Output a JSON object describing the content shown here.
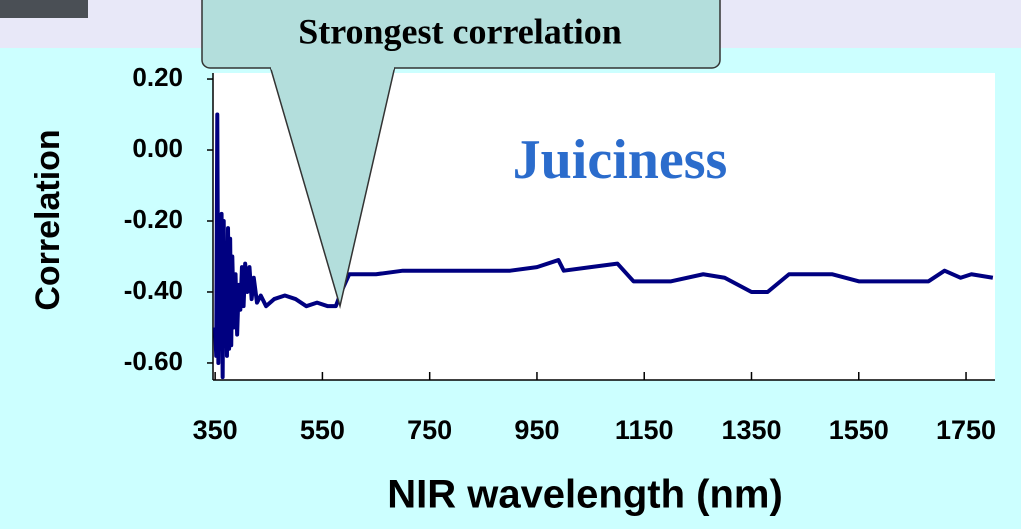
{
  "chart_data": {
    "type": "line",
    "title": "Juiciness",
    "annotation": "Strongest correlation",
    "xlabel": "NIR wavelength (nm)",
    "ylabel": "Correlation",
    "color": "#000080",
    "x": [
      350,
      352,
      354,
      356,
      358,
      360,
      362,
      364,
      366,
      368,
      370,
      372,
      374,
      376,
      378,
      380,
      382,
      385,
      388,
      391,
      394,
      397,
      400,
      403,
      406,
      410,
      414,
      418,
      422,
      428,
      435,
      445,
      460,
      480,
      500,
      520,
      540,
      560,
      575,
      585,
      600,
      650,
      700,
      800,
      900,
      950,
      990,
      1000,
      1050,
      1100,
      1130,
      1200,
      1260,
      1300,
      1350,
      1380,
      1420,
      1500,
      1550,
      1680,
      1710,
      1740,
      1760,
      1800
    ],
    "values": [
      -0.5,
      -0.58,
      0.1,
      -0.6,
      -0.22,
      -0.56,
      -0.18,
      -0.64,
      -0.2,
      -0.55,
      -0.3,
      -0.58,
      -0.22,
      -0.56,
      -0.25,
      -0.55,
      -0.3,
      -0.5,
      -0.35,
      -0.52,
      -0.38,
      -0.45,
      -0.33,
      -0.44,
      -0.32,
      -0.4,
      -0.33,
      -0.42,
      -0.36,
      -0.43,
      -0.41,
      -0.44,
      -0.42,
      -0.41,
      -0.42,
      -0.44,
      -0.43,
      -0.44,
      -0.44,
      -0.4,
      -0.35,
      -0.35,
      -0.34,
      -0.34,
      -0.34,
      -0.33,
      -0.31,
      -0.34,
      -0.33,
      -0.32,
      -0.37,
      -0.37,
      -0.35,
      -0.36,
      -0.4,
      -0.4,
      -0.35,
      -0.35,
      -0.37,
      -0.37,
      -0.34,
      -0.36,
      -0.35,
      -0.36
    ],
    "xlim": [
      346,
      1804
    ],
    "ylim": [
      -0.648,
      0.217
    ],
    "xticks": [
      350,
      550,
      750,
      950,
      1150,
      1350,
      1550,
      1750
    ],
    "yticks": [
      {
        "value": 0.2,
        "label": "0.20"
      },
      {
        "value": 0,
        "label": "0.00"
      },
      {
        "value": -0.2,
        "label": "-0.20"
      },
      {
        "value": -0.4,
        "label": "-0.40"
      },
      {
        "value": -0.6,
        "label": "-0.60"
      }
    ]
  }
}
